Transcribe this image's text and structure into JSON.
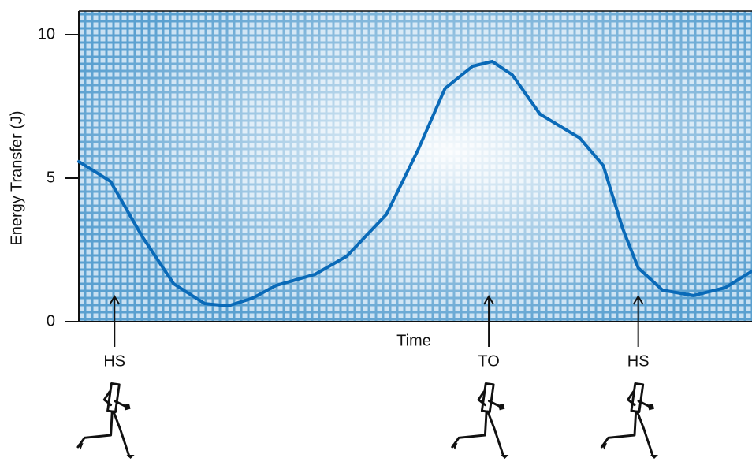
{
  "chart_data": {
    "type": "line",
    "y_label": "Energy Transfer (J)",
    "x_label": "Time",
    "xlim": [
      0,
      100
    ],
    "ylim": [
      0,
      10
    ],
    "yticks": [
      0,
      5,
      10
    ],
    "series": [
      {
        "name": "Energy Transfer",
        "color": "#0a6ab8",
        "x": [
          0,
          4.7,
          9.4,
          14.1,
          18.7,
          22.2,
          25.8,
          29.3,
          35.1,
          39.8,
          45.7,
          50.4,
          54.4,
          58.5,
          61.4,
          64.4,
          68.5,
          74.4,
          77.9,
          80.8,
          83.1,
          86.7,
          91.3,
          96,
          100
        ],
        "values": [
          5.58,
          4.89,
          2.97,
          1.32,
          0.63,
          0.55,
          0.82,
          1.26,
          1.65,
          2.28,
          3.74,
          5.99,
          8.13,
          8.9,
          9.07,
          8.6,
          7.23,
          6.4,
          5.44,
          3.24,
          1.87,
          1.1,
          0.91,
          1.18,
          1.76
        ]
      }
    ],
    "annotations": [
      {
        "text": "HS",
        "x": 5.3
      },
      {
        "text": "TO",
        "x": 60.9
      },
      {
        "text": "HS",
        "x": 83.1
      }
    ]
  }
}
